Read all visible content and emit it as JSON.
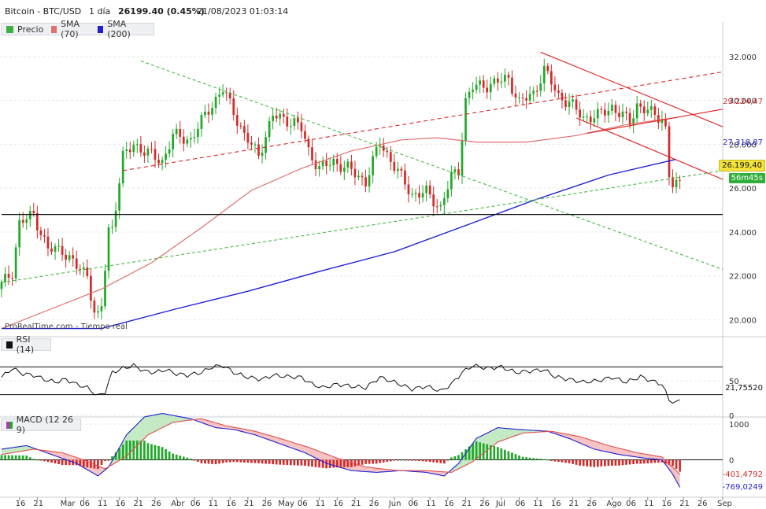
{
  "header": {
    "instrument": "Bitcoin - BTC/USD",
    "interval": "1 día",
    "price": "26199.40 (0.45%)",
    "datetime": "21/08/2023 01:03:14"
  },
  "legend_price": {
    "items": [
      {
        "label": "Precio",
        "color": "#3cb043"
      },
      {
        "label": "SMA (70)",
        "color": "#e07070"
      },
      {
        "label": "SMA (200)",
        "color": "#1f1fd6"
      }
    ]
  },
  "legend_rsi": {
    "label": "RSI (14)"
  },
  "legend_macd": {
    "label": "MACD (12 26 9)"
  },
  "watermark": {
    "source": "ProRealTime.com",
    "mode": "- Tiempo real"
  },
  "tags": {
    "sma70": "29.224,47",
    "sma200": "27.318,87",
    "last_price": "26.199,40",
    "countdown": "56m45s",
    "rsi": "21,75520",
    "macd1": "-401,4792",
    "macd2": "-769,0249"
  },
  "colors": {
    "up": "#22a82a",
    "down": "#d42a2a",
    "sma70": "#e07070",
    "sma200": "#1f1fd6",
    "trend_green": "#44bb44",
    "trend_red": "#e02020"
  },
  "chart_data": [
    {
      "type": "candlestick",
      "title": "Bitcoin - BTC/USD",
      "ylim": [
        19300,
        33000
      ],
      "yticks": [
        20000,
        22000,
        24000,
        26000,
        28000,
        30000,
        32000
      ],
      "ytick_labels": [
        "20.000",
        "22.000",
        "24.000",
        "26.000",
        "28.000",
        "30.000",
        "32.000"
      ],
      "x_start": "2023-02-11",
      "x_end": "2023-09-01",
      "x_ticks": [
        {
          "date": "2023-02-16",
          "label": "16"
        },
        {
          "date": "2023-02-21",
          "label": "21"
        },
        {
          "date": "2023-03-01",
          "label": "Mar"
        },
        {
          "date": "2023-03-06",
          "label": "06"
        },
        {
          "date": "2023-03-11",
          "label": "11"
        },
        {
          "date": "2023-03-16",
          "label": "16"
        },
        {
          "date": "2023-03-21",
          "label": "21"
        },
        {
          "date": "2023-03-26",
          "label": "26"
        },
        {
          "date": "2023-04-01",
          "label": "Abr"
        },
        {
          "date": "2023-04-06",
          "label": "06"
        },
        {
          "date": "2023-04-11",
          "label": "11"
        },
        {
          "date": "2023-04-16",
          "label": "16"
        },
        {
          "date": "2023-04-21",
          "label": "21"
        },
        {
          "date": "2023-04-26",
          "label": "26"
        },
        {
          "date": "2023-05-01",
          "label": "May"
        },
        {
          "date": "2023-05-06",
          "label": "06"
        },
        {
          "date": "2023-05-11",
          "label": "11"
        },
        {
          "date": "2023-05-16",
          "label": "16"
        },
        {
          "date": "2023-05-21",
          "label": "21"
        },
        {
          "date": "2023-05-26",
          "label": "26"
        },
        {
          "date": "2023-06-01",
          "label": "Jun"
        },
        {
          "date": "2023-06-06",
          "label": "06"
        },
        {
          "date": "2023-06-11",
          "label": "11"
        },
        {
          "date": "2023-06-16",
          "label": "16"
        },
        {
          "date": "2023-06-21",
          "label": "21"
        },
        {
          "date": "2023-06-26",
          "label": "26"
        },
        {
          "date": "2023-07-01",
          "label": "Jul"
        },
        {
          "date": "2023-07-06",
          "label": "06"
        },
        {
          "date": "2023-07-11",
          "label": "11"
        },
        {
          "date": "2023-07-16",
          "label": "16"
        },
        {
          "date": "2023-07-21",
          "label": "21"
        },
        {
          "date": "2023-07-26",
          "label": "26"
        },
        {
          "date": "2023-08-01",
          "label": "Ago"
        },
        {
          "date": "2023-08-06",
          "label": "06"
        },
        {
          "date": "2023-08-11",
          "label": "11"
        },
        {
          "date": "2023-08-16",
          "label": "16"
        },
        {
          "date": "2023-08-21",
          "label": "21"
        },
        {
          "date": "2023-08-26",
          "label": "26"
        },
        {
          "date": "2023-09-01",
          "label": "Sep"
        }
      ],
      "close_anchors": [
        [
          "2023-02-11",
          21600
        ],
        [
          "2023-02-14",
          22200
        ],
        [
          "2023-02-16",
          24400
        ],
        [
          "2023-02-20",
          24800
        ],
        [
          "2023-02-24",
          23200
        ],
        [
          "2023-02-28",
          23200
        ],
        [
          "2023-03-04",
          22400
        ],
        [
          "2023-03-07",
          22100
        ],
        [
          "2023-03-09",
          20300
        ],
        [
          "2023-03-10",
          20100
        ],
        [
          "2023-03-11",
          20600
        ],
        [
          "2023-03-13",
          24100
        ],
        [
          "2023-03-14",
          24200
        ],
        [
          "2023-03-17",
          27400
        ],
        [
          "2023-03-20",
          28000
        ],
        [
          "2023-03-24",
          27600
        ],
        [
          "2023-03-28",
          27200
        ],
        [
          "2023-03-31",
          28400
        ],
        [
          "2023-04-05",
          28200
        ],
        [
          "2023-04-10",
          29600
        ],
        [
          "2023-04-14",
          30500
        ],
        [
          "2023-04-17",
          29500
        ],
        [
          "2023-04-20",
          28400
        ],
        [
          "2023-04-24",
          27500
        ],
        [
          "2023-04-28",
          29300
        ],
        [
          "2023-05-04",
          29000
        ],
        [
          "2023-05-06",
          28700
        ],
        [
          "2023-05-08",
          27700
        ],
        [
          "2023-05-11",
          26900
        ],
        [
          "2023-05-15",
          27200
        ],
        [
          "2023-05-19",
          26900
        ],
        [
          "2023-05-24",
          26300
        ],
        [
          "2023-05-28",
          28100
        ],
        [
          "2023-06-01",
          27000
        ],
        [
          "2023-06-06",
          25700
        ],
        [
          "2023-06-10",
          25800
        ],
        [
          "2023-06-14",
          25100
        ],
        [
          "2023-06-15",
          25600
        ],
        [
          "2023-06-17",
          26500
        ],
        [
          "2023-06-19",
          26800
        ],
        [
          "2023-06-21",
          30000
        ],
        [
          "2023-06-23",
          30600
        ],
        [
          "2023-06-27",
          30700
        ],
        [
          "2023-07-03",
          31000
        ],
        [
          "2023-07-06",
          29900
        ],
        [
          "2023-07-10",
          30300
        ],
        [
          "2023-07-13",
          31400
        ],
        [
          "2023-07-17",
          30200
        ],
        [
          "2023-07-20",
          29900
        ],
        [
          "2023-07-24",
          29200
        ],
        [
          "2023-07-28",
          29300
        ],
        [
          "2023-08-01",
          29700
        ],
        [
          "2023-08-06",
          29000
        ],
        [
          "2023-08-08",
          29800
        ],
        [
          "2023-08-12",
          29400
        ],
        [
          "2023-08-15",
          29200
        ],
        [
          "2023-08-16",
          28700
        ],
        [
          "2023-08-17",
          26600
        ],
        [
          "2023-08-18",
          26100
        ],
        [
          "2023-08-19",
          26100
        ],
        [
          "2023-08-20",
          26199.4
        ]
      ],
      "sma70": [
        [
          "2023-02-11",
          19600
        ],
        [
          "2023-02-25",
          20500
        ],
        [
          "2023-03-11",
          21400
        ],
        [
          "2023-03-25",
          22600
        ],
        [
          "2023-04-08",
          24200
        ],
        [
          "2023-04-22",
          25900
        ],
        [
          "2023-05-06",
          26900
        ],
        [
          "2023-05-20",
          27700
        ],
        [
          "2023-06-03",
          28200
        ],
        [
          "2023-06-13",
          28300
        ],
        [
          "2023-06-24",
          28100
        ],
        [
          "2023-07-08",
          28100
        ],
        [
          "2023-07-22",
          28400
        ],
        [
          "2023-08-05",
          28900
        ],
        [
          "2023-08-19",
          29224.47
        ]
      ],
      "sma200": [
        [
          "2023-02-11",
          19600
        ],
        [
          "2023-03-11",
          19600
        ],
        [
          "2023-04-01",
          20500
        ],
        [
          "2023-04-21",
          21300
        ],
        [
          "2023-05-11",
          22200
        ],
        [
          "2023-06-01",
          23100
        ],
        [
          "2023-06-21",
          24300
        ],
        [
          "2023-07-11",
          25500
        ],
        [
          "2023-07-31",
          26600
        ],
        [
          "2023-08-19",
          27318.87
        ]
      ],
      "trendlines": [
        {
          "name": "green-support-rising",
          "color": "green",
          "points": [
            [
              "2023-02-11",
              21700
            ],
            [
              "2023-09-01",
              26800
            ]
          ]
        },
        {
          "name": "green-resistance-falling",
          "color": "green",
          "points": [
            [
              "2023-03-22",
              31800
            ],
            [
              "2023-09-01",
              22300
            ]
          ]
        },
        {
          "name": "red-rising-upper",
          "color": "red",
          "points": [
            [
              "2023-03-17",
              26800
            ],
            [
              "2023-09-01",
              31300
            ]
          ]
        },
        {
          "name": "red-rising-lower",
          "color": "red",
          "points": [
            [
              "2023-07-25",
              28500
            ],
            [
              "2023-09-01",
              29600
            ]
          ]
        },
        {
          "name": "red-channel-top",
          "color": "red",
          "points": [
            [
              "2023-07-12",
              32200
            ],
            [
              "2023-09-01",
              28800
            ]
          ]
        },
        {
          "name": "red-channel-bottom",
          "color": "red",
          "points": [
            [
              "2023-07-22",
              29200
            ],
            [
              "2023-09-01",
              26400
            ]
          ]
        },
        {
          "name": "support-horizontal",
          "color": "black",
          "points": [
            [
              "2023-02-11",
              24800
            ],
            [
              "2023-09-01",
              24800
            ]
          ]
        }
      ]
    },
    {
      "type": "line",
      "title": "RSI (14)",
      "ylim": [
        0,
        100
      ],
      "yticks": [
        0,
        50
      ],
      "ytick_labels": [
        "0",
        "50"
      ],
      "bands": [
        30,
        70
      ],
      "values": [
        [
          "2023-02-11",
          55
        ],
        [
          "2023-02-14",
          68
        ],
        [
          "2023-02-17",
          60
        ],
        [
          "2023-02-20",
          58
        ],
        [
          "2023-02-23",
          52
        ],
        [
          "2023-02-26",
          48
        ],
        [
          "2023-03-01",
          52
        ],
        [
          "2023-03-04",
          45
        ],
        [
          "2023-03-07",
          40
        ],
        [
          "2023-03-10",
          28
        ],
        [
          "2023-03-12",
          34
        ],
        [
          "2023-03-14",
          62
        ],
        [
          "2023-03-17",
          68
        ],
        [
          "2023-03-20",
          72
        ],
        [
          "2023-03-23",
          64
        ],
        [
          "2023-03-26",
          62
        ],
        [
          "2023-03-29",
          66
        ],
        [
          "2023-04-01",
          60
        ],
        [
          "2023-04-04",
          58
        ],
        [
          "2023-04-08",
          62
        ],
        [
          "2023-04-11",
          70
        ],
        [
          "2023-04-14",
          72
        ],
        [
          "2023-04-17",
          62
        ],
        [
          "2023-04-21",
          55
        ],
        [
          "2023-04-25",
          52
        ],
        [
          "2023-04-28",
          58
        ],
        [
          "2023-05-02",
          56
        ],
        [
          "2023-05-06",
          55
        ],
        [
          "2023-05-09",
          45
        ],
        [
          "2023-05-12",
          40
        ],
        [
          "2023-05-16",
          45
        ],
        [
          "2023-05-20",
          42
        ],
        [
          "2023-05-24",
          40
        ],
        [
          "2023-05-28",
          55
        ],
        [
          "2023-06-01",
          48
        ],
        [
          "2023-06-06",
          38
        ],
        [
          "2023-06-10",
          42
        ],
        [
          "2023-06-14",
          35
        ],
        [
          "2023-06-17",
          45
        ],
        [
          "2023-06-20",
          62
        ],
        [
          "2023-06-23",
          72
        ],
        [
          "2023-06-27",
          68
        ],
        [
          "2023-07-01",
          70
        ],
        [
          "2023-07-05",
          62
        ],
        [
          "2023-07-09",
          64
        ],
        [
          "2023-07-13",
          66
        ],
        [
          "2023-07-16",
          56
        ],
        [
          "2023-07-20",
          52
        ],
        [
          "2023-07-24",
          48
        ],
        [
          "2023-07-28",
          50
        ],
        [
          "2023-08-01",
          55
        ],
        [
          "2023-08-05",
          48
        ],
        [
          "2023-08-09",
          56
        ],
        [
          "2023-08-12",
          50
        ],
        [
          "2023-08-15",
          45
        ],
        [
          "2023-08-17",
          22
        ],
        [
          "2023-08-19",
          18
        ],
        [
          "2023-08-20",
          21.76
        ]
      ]
    },
    {
      "type": "macd",
      "title": "MACD (12 26 9)",
      "ylim": [
        -1000,
        1200
      ],
      "yticks": [
        0,
        1000
      ],
      "ytick_labels": [
        "0",
        "1000"
      ],
      "macd": [
        [
          "2023-02-11",
          300
        ],
        [
          "2023-02-18",
          400
        ],
        [
          "2023-02-25",
          150
        ],
        [
          "2023-03-04",
          -100
        ],
        [
          "2023-03-10",
          -450
        ],
        [
          "2023-03-13",
          -200
        ],
        [
          "2023-03-18",
          700
        ],
        [
          "2023-03-23",
          1200
        ],
        [
          "2023-03-28",
          1300
        ],
        [
          "2023-04-05",
          1150
        ],
        [
          "2023-04-12",
          900
        ],
        [
          "2023-04-17",
          850
        ],
        [
          "2023-04-23",
          700
        ],
        [
          "2023-04-30",
          450
        ],
        [
          "2023-05-07",
          200
        ],
        [
          "2023-05-13",
          -100
        ],
        [
          "2023-05-20",
          -300
        ],
        [
          "2023-05-27",
          -350
        ],
        [
          "2023-06-03",
          -300
        ],
        [
          "2023-06-10",
          -350
        ],
        [
          "2023-06-15",
          -450
        ],
        [
          "2023-06-19",
          -100
        ],
        [
          "2023-06-24",
          600
        ],
        [
          "2023-06-30",
          900
        ],
        [
          "2023-07-06",
          850
        ],
        [
          "2023-07-14",
          800
        ],
        [
          "2023-07-20",
          600
        ],
        [
          "2023-07-27",
          300
        ],
        [
          "2023-08-03",
          150
        ],
        [
          "2023-08-10",
          50
        ],
        [
          "2023-08-15",
          0
        ],
        [
          "2023-08-18",
          -400
        ],
        [
          "2023-08-20",
          -769.02
        ]
      ],
      "signal": [
        [
          "2023-02-11",
          150
        ],
        [
          "2023-02-20",
          300
        ],
        [
          "2023-02-28",
          200
        ],
        [
          "2023-03-06",
          0
        ],
        [
          "2023-03-12",
          -250
        ],
        [
          "2023-03-18",
          100
        ],
        [
          "2023-03-24",
          700
        ],
        [
          "2023-03-31",
          1050
        ],
        [
          "2023-04-08",
          1150
        ],
        [
          "2023-04-15",
          950
        ],
        [
          "2023-04-23",
          800
        ],
        [
          "2023-04-30",
          600
        ],
        [
          "2023-05-08",
          350
        ],
        [
          "2023-05-16",
          50
        ],
        [
          "2023-05-24",
          -200
        ],
        [
          "2023-06-02",
          -300
        ],
        [
          "2023-06-10",
          -300
        ],
        [
          "2023-06-17",
          -350
        ],
        [
          "2023-06-23",
          -50
        ],
        [
          "2023-06-30",
          500
        ],
        [
          "2023-07-07",
          750
        ],
        [
          "2023-07-15",
          800
        ],
        [
          "2023-07-23",
          650
        ],
        [
          "2023-07-31",
          400
        ],
        [
          "2023-08-08",
          200
        ],
        [
          "2023-08-15",
          80
        ],
        [
          "2023-08-20",
          -401.48
        ]
      ]
    }
  ]
}
